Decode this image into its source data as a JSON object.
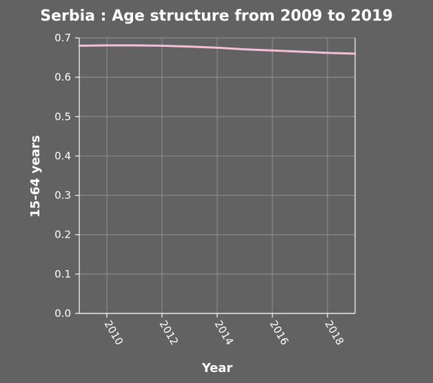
{
  "chart_data": {
    "type": "line",
    "title": "Serbia : Age structure from 2009 to 2019",
    "xlabel": "Year",
    "ylabel": "15-64 years",
    "xlim": [
      2009,
      2019
    ],
    "ylim": [
      0,
      0.7
    ],
    "x_ticks": [
      2010,
      2012,
      2014,
      2016,
      2018
    ],
    "y_ticks": [
      "0.0",
      "0.1",
      "0.2",
      "0.3",
      "0.4",
      "0.5",
      "0.6",
      "0.7"
    ],
    "grid": true,
    "series": [
      {
        "color": "#f4c0d8",
        "x": [
          2009,
          2010,
          2011,
          2012,
          2013,
          2014,
          2015,
          2016,
          2017,
          2018,
          2019
        ],
        "values": [
          0.68,
          0.681,
          0.681,
          0.68,
          0.678,
          0.675,
          0.671,
          0.668,
          0.665,
          0.662,
          0.66
        ]
      }
    ]
  }
}
